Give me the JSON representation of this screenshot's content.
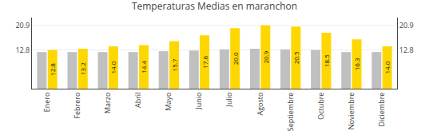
{
  "chart_data": {
    "type": "bar",
    "title": "Temperaturas Medias en maranchon",
    "categories": [
      "Enero",
      "Febrero",
      "Marzo",
      "Abril",
      "Mayo",
      "Junio",
      "Julio",
      "Agosto",
      "Septiembre",
      "Octubre",
      "Noviembre",
      "Diciembre"
    ],
    "series": [
      {
        "color": "#C0C0C0",
        "values": [
          12.1,
          12.1,
          12.1,
          12.1,
          12.4,
          12.6,
          13.0,
          13.2,
          13.0,
          12.8,
          12.1,
          12.1
        ]
      },
      {
        "color": "#FFD700",
        "values": [
          12.8,
          13.2,
          14.0,
          14.4,
          15.7,
          17.6,
          20.0,
          20.9,
          20.5,
          18.5,
          16.3,
          14.0
        ],
        "value_labels": [
          "12.8",
          "13.2",
          "14.0",
          "14.4",
          "15.7",
          "17.6",
          "20.0",
          "20.9",
          "20.5",
          "18.5",
          "16.3",
          "14.0"
        ]
      }
    ],
    "ylim": [
      0,
      23.5
    ],
    "yticks": [
      12.8,
      20.9
    ],
    "y2lim": [
      0,
      23.5
    ],
    "y2ticks": [
      12.8,
      20.9
    ],
    "grid": true,
    "data_labels": true
  }
}
